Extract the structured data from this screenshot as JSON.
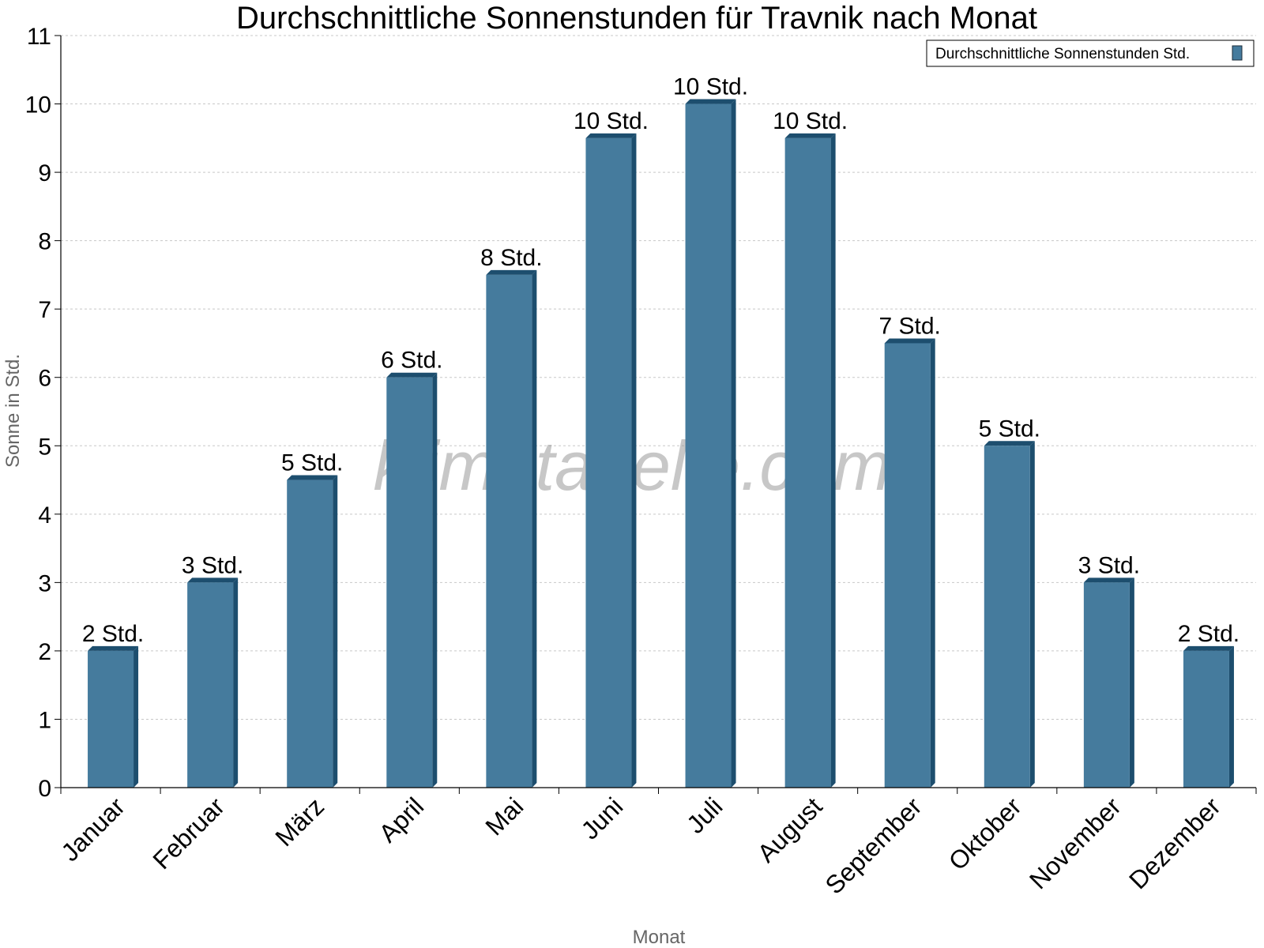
{
  "chart_data": {
    "type": "bar",
    "title": "Durchschnittliche Sonnenstunden für Travnik nach Monat",
    "xlabel": "Monat",
    "ylabel": "Sonne in Std.",
    "ylim": [
      0,
      11
    ],
    "yticks": [
      "0",
      "1",
      "2",
      "3",
      "4",
      "5",
      "6",
      "7",
      "8",
      "9",
      "10",
      "11"
    ],
    "grid": true,
    "legend_position": "top-right",
    "categories": [
      "Januar",
      "Februar",
      "März",
      "April",
      "Mai",
      "Juni",
      "Juli",
      "August",
      "September",
      "Oktober",
      "November",
      "Dezember"
    ],
    "series": [
      {
        "name": "Durchschnittliche Sonnenstunden Std.",
        "values": [
          2,
          3,
          4.5,
          6,
          7.5,
          9.5,
          10,
          9.5,
          6.5,
          5,
          3,
          2
        ],
        "labels": [
          "2 Std.",
          "3 Std.",
          "5 Std.",
          "6 Std.",
          "8 Std.",
          "10 Std.",
          "10 Std.",
          "10 Std.",
          "7 Std.",
          "5 Std.",
          "3 Std.",
          "2 Std."
        ],
        "color": "#457b9d",
        "shade_color": "#1d4e6e"
      }
    ]
  },
  "watermark": "klimatabelle.com"
}
